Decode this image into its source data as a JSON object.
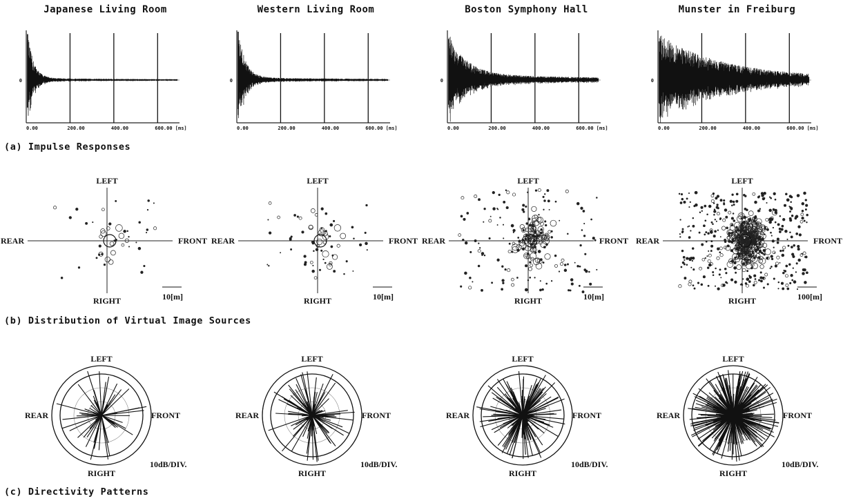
{
  "rooms": [
    {
      "title": "Japanese Living Room",
      "scale_label": "10[m]",
      "ir_tail": 0.04,
      "ir_decay": 28,
      "ir_peak": 0.95,
      "src_count": 45,
      "src_spread": 0.75,
      "rays": 55
    },
    {
      "title": "Western Living Room",
      "scale_label": "10[m]",
      "ir_tail": 0.05,
      "ir_decay": 34,
      "ir_peak": 1.0,
      "src_count": 70,
      "src_spread": 0.7,
      "rays": 90
    },
    {
      "title": "Boston Symphony Hall",
      "scale_label": "10[m]",
      "ir_tail": 0.14,
      "ir_decay": 80,
      "ir_peak": 0.85,
      "src_count": 240,
      "src_spread": 0.95,
      "rays": 160
    },
    {
      "title": "Munster in Freiburg",
      "scale_label": "100[m]",
      "ir_tail": 0.2,
      "ir_decay": 260,
      "ir_peak": 0.8,
      "src_count": 700,
      "src_spread": 0.9,
      "rays": 320
    }
  ],
  "impulse": {
    "zero_label": "0",
    "tick_labels": [
      "0.00",
      "200.00",
      "400.00",
      "600.00 [ms]"
    ],
    "x_range_ms": [
      0,
      700
    ]
  },
  "directions": {
    "left": "LEFT",
    "right": "RIGHT",
    "front": "FRONT",
    "rear": "REAR"
  },
  "directivity": {
    "scale_label": "10dB/DIV."
  },
  "captions": {
    "a": "(a) Impulse Responses",
    "b": "(b) Distribution of Virtual Image Sources",
    "c": "(c) Directivity Patterns"
  },
  "chart_data": [
    {
      "type": "line",
      "title": "Japanese Living Room",
      "xlabel": "[ms]",
      "xlim": [
        0,
        700
      ],
      "x_ticks": [
        0,
        200,
        400,
        600
      ],
      "description_series": "impulse response decaying to near zero by ~100 ms"
    },
    {
      "type": "line",
      "title": "Western Living Room",
      "xlabel": "[ms]",
      "xlim": [
        0,
        700
      ],
      "x_ticks": [
        0,
        200,
        400,
        600
      ]
    },
    {
      "type": "line",
      "title": "Boston Symphony Hall",
      "xlabel": "[ms]",
      "xlim": [
        0,
        700
      ],
      "x_ticks": [
        0,
        200,
        400,
        600
      ]
    },
    {
      "type": "line",
      "title": "Munster in Freiburg",
      "xlabel": "[ms]",
      "xlim": [
        0,
        700
      ],
      "x_ticks": [
        0,
        200,
        400,
        600
      ]
    }
  ]
}
